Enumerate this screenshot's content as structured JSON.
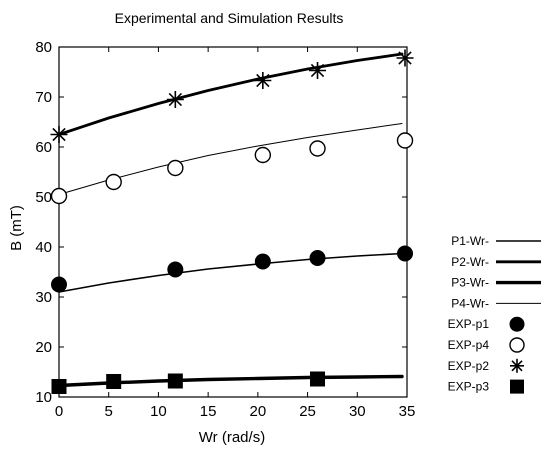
{
  "chart_data": {
    "type": "line",
    "title": "Experimental and Simulation Results",
    "xlabel": "Wr (rad/s)",
    "ylabel": "B (mT)",
    "xlim": [
      0,
      35
    ],
    "ylim": [
      10,
      80
    ],
    "xticks": [
      0,
      5,
      10,
      15,
      20,
      25,
      30,
      35
    ],
    "yticks": [
      10,
      20,
      30,
      40,
      50,
      60,
      70,
      80
    ],
    "grid": false,
    "legend_position": "right",
    "series": [
      {
        "name": "P1-Wr-",
        "kind": "line",
        "line_weight": "thin",
        "x": [
          0,
          5,
          10,
          15,
          20,
          25,
          30,
          34.5
        ],
        "y": [
          31,
          32.8,
          34.3,
          35.6,
          36.6,
          37.5,
          38.2,
          38.7
        ]
      },
      {
        "name": "P2-Wr-",
        "kind": "line",
        "line_weight": "medium",
        "x": [
          0,
          5,
          10,
          15,
          20,
          25,
          30,
          34.5
        ],
        "y": [
          62.5,
          65.8,
          68.7,
          71.3,
          73.6,
          75.6,
          77.3,
          78.6
        ]
      },
      {
        "name": "P3-Wr-",
        "kind": "line",
        "line_weight": "thick",
        "x": [
          0,
          5,
          10,
          15,
          20,
          25,
          30,
          34.5
        ],
        "y": [
          12.3,
          12.8,
          13.2,
          13.5,
          13.7,
          13.9,
          14.0,
          14.1
        ]
      },
      {
        "name": "P4-Wr-",
        "kind": "line",
        "line_weight": "hairline",
        "x": [
          0,
          5,
          10,
          15,
          20,
          25,
          30,
          34.5
        ],
        "y": [
          50.5,
          53.4,
          56.0,
          58.3,
          60.2,
          61.9,
          63.4,
          64.7
        ]
      },
      {
        "name": "EXP-p1",
        "kind": "marker",
        "marker": "filled-circle",
        "x": [
          0,
          11.7,
          20.5,
          26,
          34.8
        ],
        "y": [
          32.5,
          35.5,
          37.1,
          37.8,
          38.7
        ]
      },
      {
        "name": "EXP-p4",
        "kind": "marker",
        "marker": "open-circle",
        "x": [
          0,
          5.5,
          11.7,
          20.5,
          26,
          34.8
        ],
        "y": [
          50.2,
          53,
          55.8,
          58.4,
          59.7,
          61.3
        ]
      },
      {
        "name": "EXP-p2",
        "kind": "marker",
        "marker": "asterisk",
        "x": [
          0,
          11.7,
          20.5,
          26,
          34.8
        ],
        "y": [
          62.5,
          69.5,
          73.3,
          75.3,
          77.8
        ]
      },
      {
        "name": "EXP-p3",
        "kind": "marker",
        "marker": "filled-square",
        "x": [
          0,
          5.5,
          11.7,
          26
        ],
        "y": [
          12.1,
          13.1,
          13.2,
          13.6
        ]
      }
    ]
  }
}
